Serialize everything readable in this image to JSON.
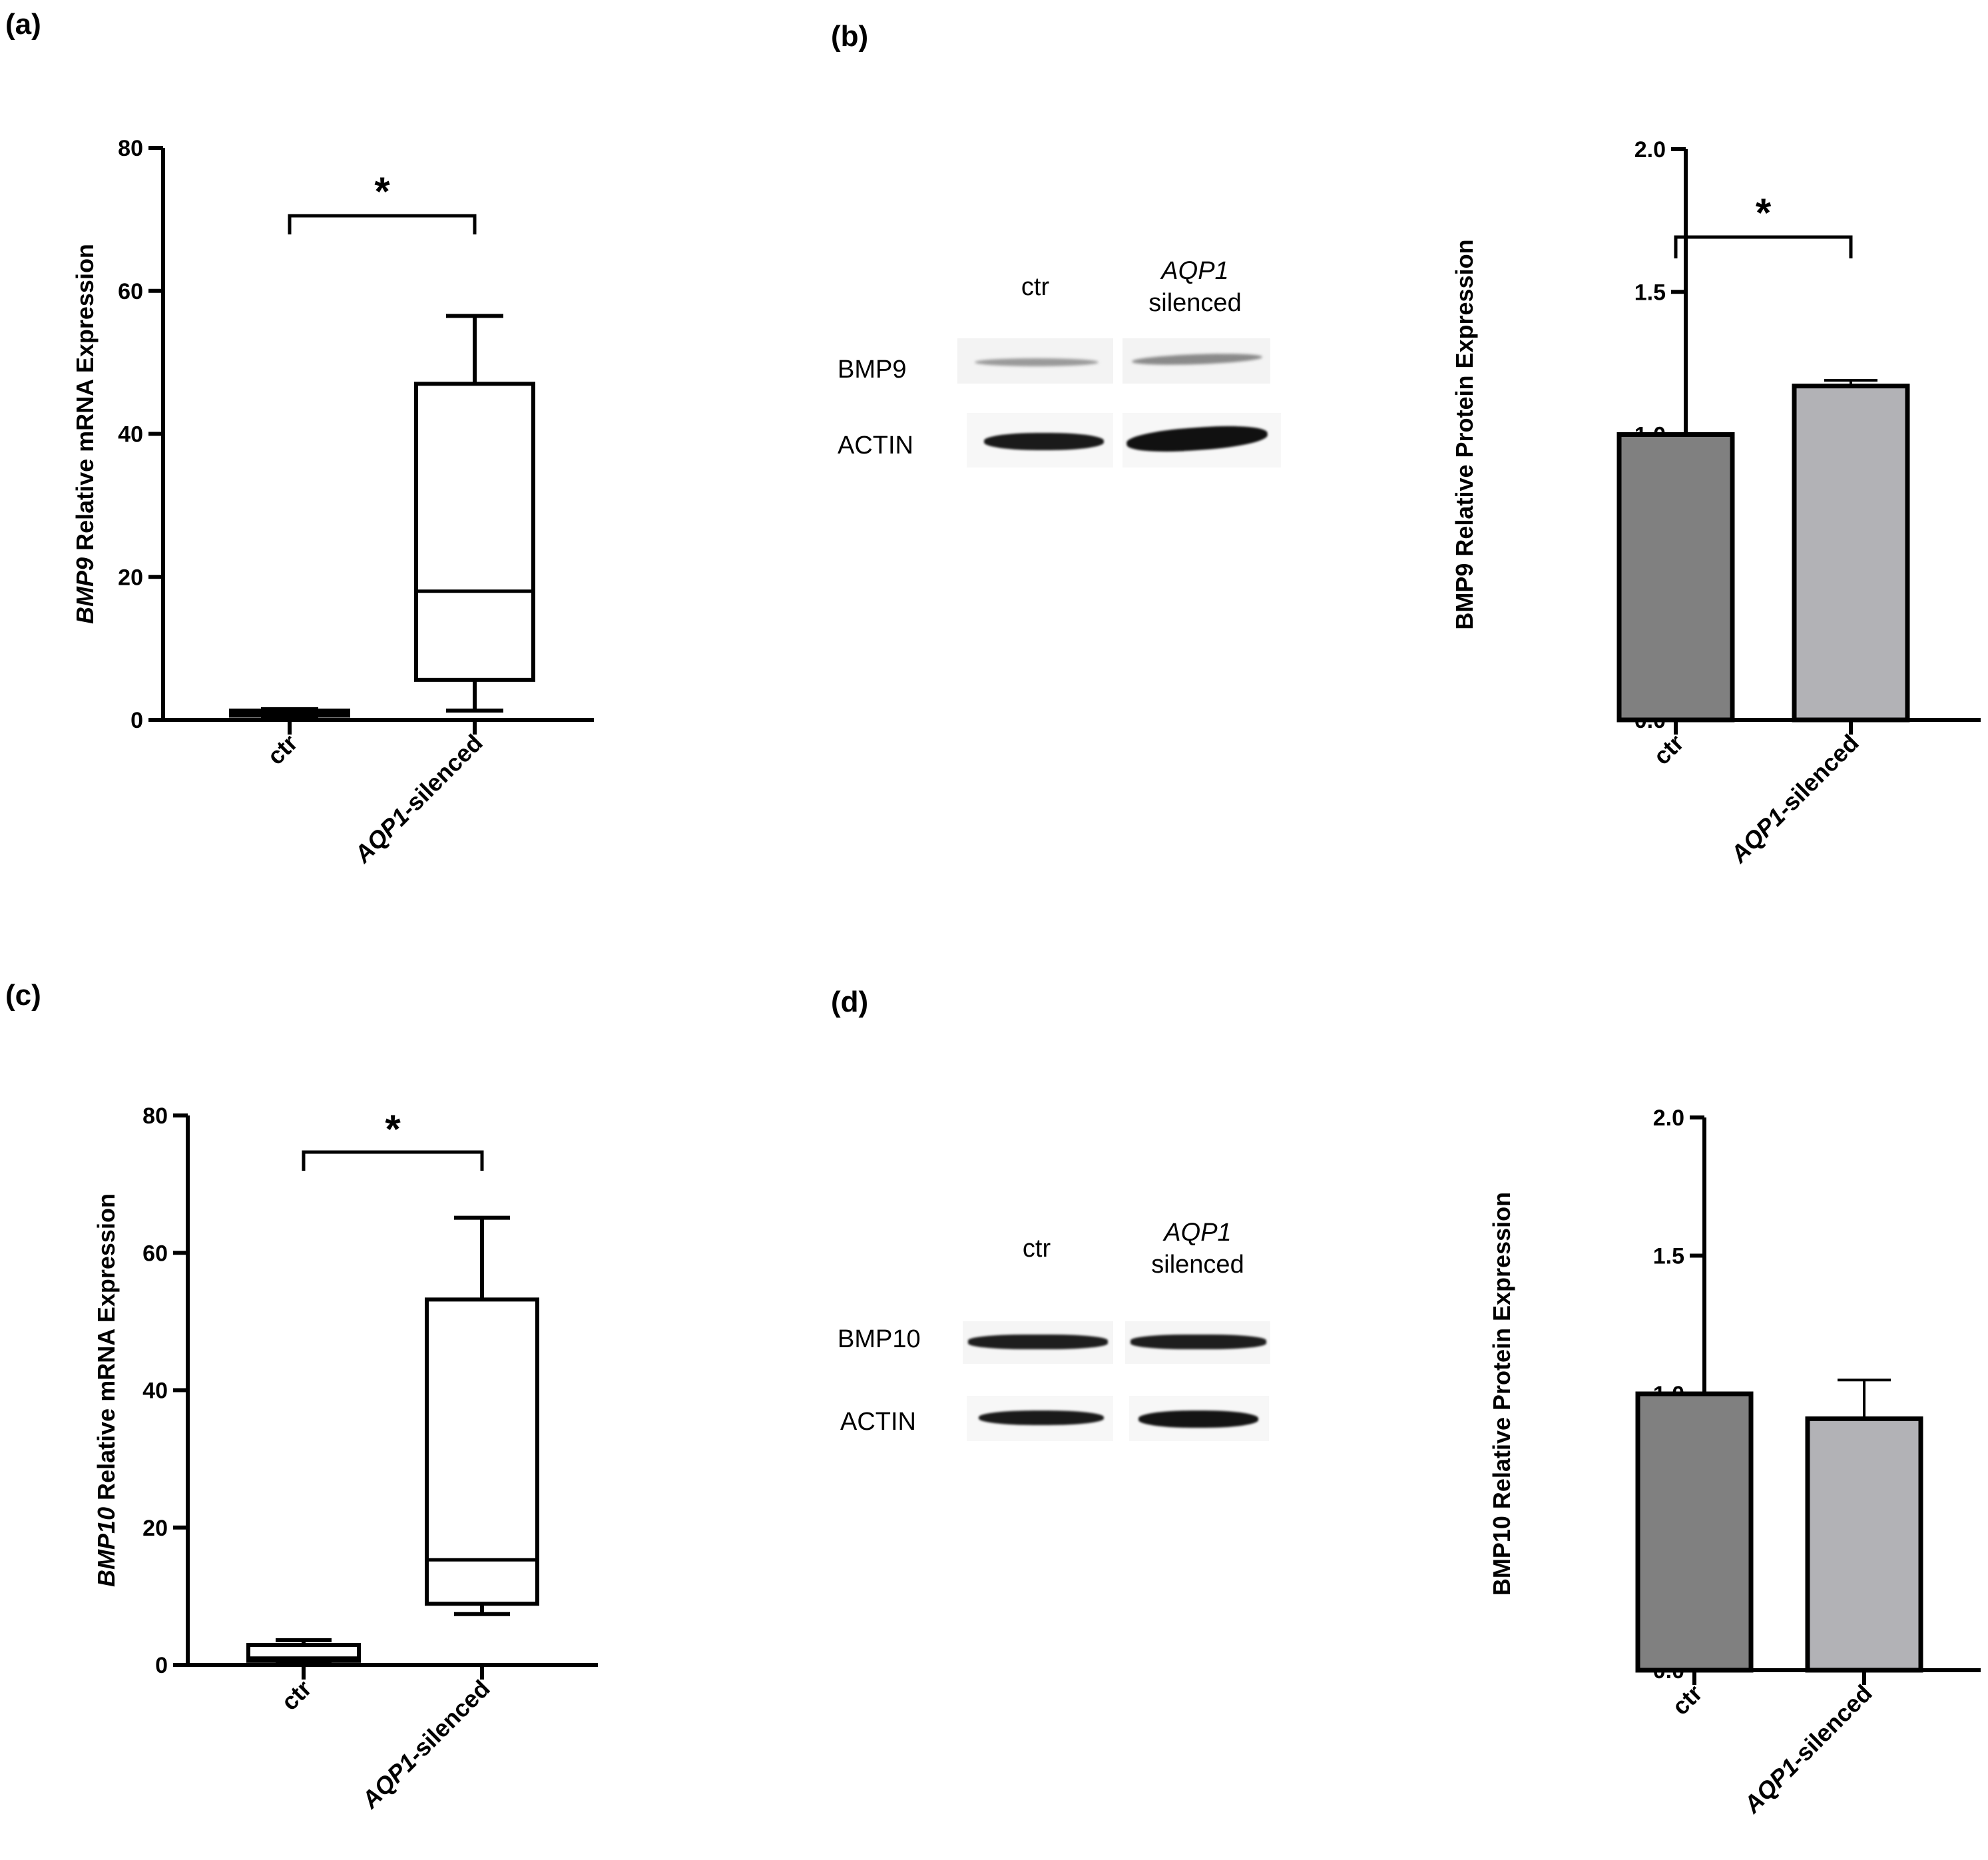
{
  "panels": {
    "a": "(a)",
    "b": "(b)",
    "c": "(c)",
    "d": "(d)"
  },
  "blots": {
    "b": {
      "lane_ctr": "ctr",
      "lane_aqp1": "AQP1",
      "lane_silenced": "silenced",
      "band_top": "BMP9",
      "band_bottom": "ACTIN"
    },
    "d": {
      "lane_ctr": "ctr",
      "lane_aqp1": "AQP1",
      "lane_silenced": "silenced",
      "band_top": "BMP10",
      "band_bottom": "ACTIN"
    }
  },
  "colors": {
    "axis": "#000000",
    "bar_ctr": "#808080",
    "bar_aqp1": "#b2b2b6",
    "band": "#1a1a1a"
  },
  "chart_data": [
    {
      "panel": "a",
      "type": "boxplot",
      "ylabel_italic": "BMP9",
      "ylabel_rest": " Relative mRNA Expression",
      "ylim": [
        0,
        80
      ],
      "yticks": [
        0,
        20,
        40,
        60,
        80
      ],
      "categories": [
        "ctr",
        "AQP1-silenced"
      ],
      "category_italic": [
        "",
        "AQP1"
      ],
      "boxes": [
        {
          "min": 0.3,
          "q1": 0.6,
          "median": 1.0,
          "q3": 1.3,
          "max": 1.5
        },
        {
          "min": 1.3,
          "q1": 5.6,
          "median": 18.0,
          "q3": 47.0,
          "max": 56.5
        }
      ],
      "significance": "*"
    },
    {
      "panel": "b",
      "type": "bar",
      "ylabel": "BMP9 Relative Protein Expression",
      "ylim": [
        0,
        2.0
      ],
      "yticks": [
        0.0,
        0.5,
        1.0,
        1.5,
        2.0
      ],
      "categories": [
        "ctr",
        "AQP1-silenced"
      ],
      "category_italic": [
        "",
        "AQP1"
      ],
      "values": [
        1.0,
        1.17
      ],
      "errors": [
        0,
        0.02
      ],
      "significance": "*"
    },
    {
      "panel": "c",
      "type": "boxplot",
      "ylabel_italic": "BMP10",
      "ylabel_rest": " Relative mRNA Expression",
      "ylim": [
        0,
        80
      ],
      "yticks": [
        0,
        20,
        40,
        60,
        80
      ],
      "categories": [
        "ctr",
        "AQP1-silenced"
      ],
      "category_italic": [
        "",
        "AQP1"
      ],
      "boxes": [
        {
          "min": 0.2,
          "q1": 0.6,
          "median": 1.0,
          "q3": 2.9,
          "max": 3.6
        },
        {
          "min": 7.4,
          "q1": 8.9,
          "median": 15.3,
          "q3": 53.2,
          "max": 65.1
        }
      ],
      "significance": "*"
    },
    {
      "panel": "d",
      "type": "bar",
      "ylabel": "BMP10 Relative Protein Expression",
      "ylim": [
        0,
        2.0
      ],
      "yticks": [
        0.0,
        0.5,
        1.0,
        1.5,
        2.0
      ],
      "categories": [
        "ctr",
        "AQP1-silenced"
      ],
      "category_italic": [
        "",
        "AQP1"
      ],
      "values": [
        1.0,
        0.91
      ],
      "errors": [
        0,
        0.14
      ],
      "significance": ""
    }
  ]
}
